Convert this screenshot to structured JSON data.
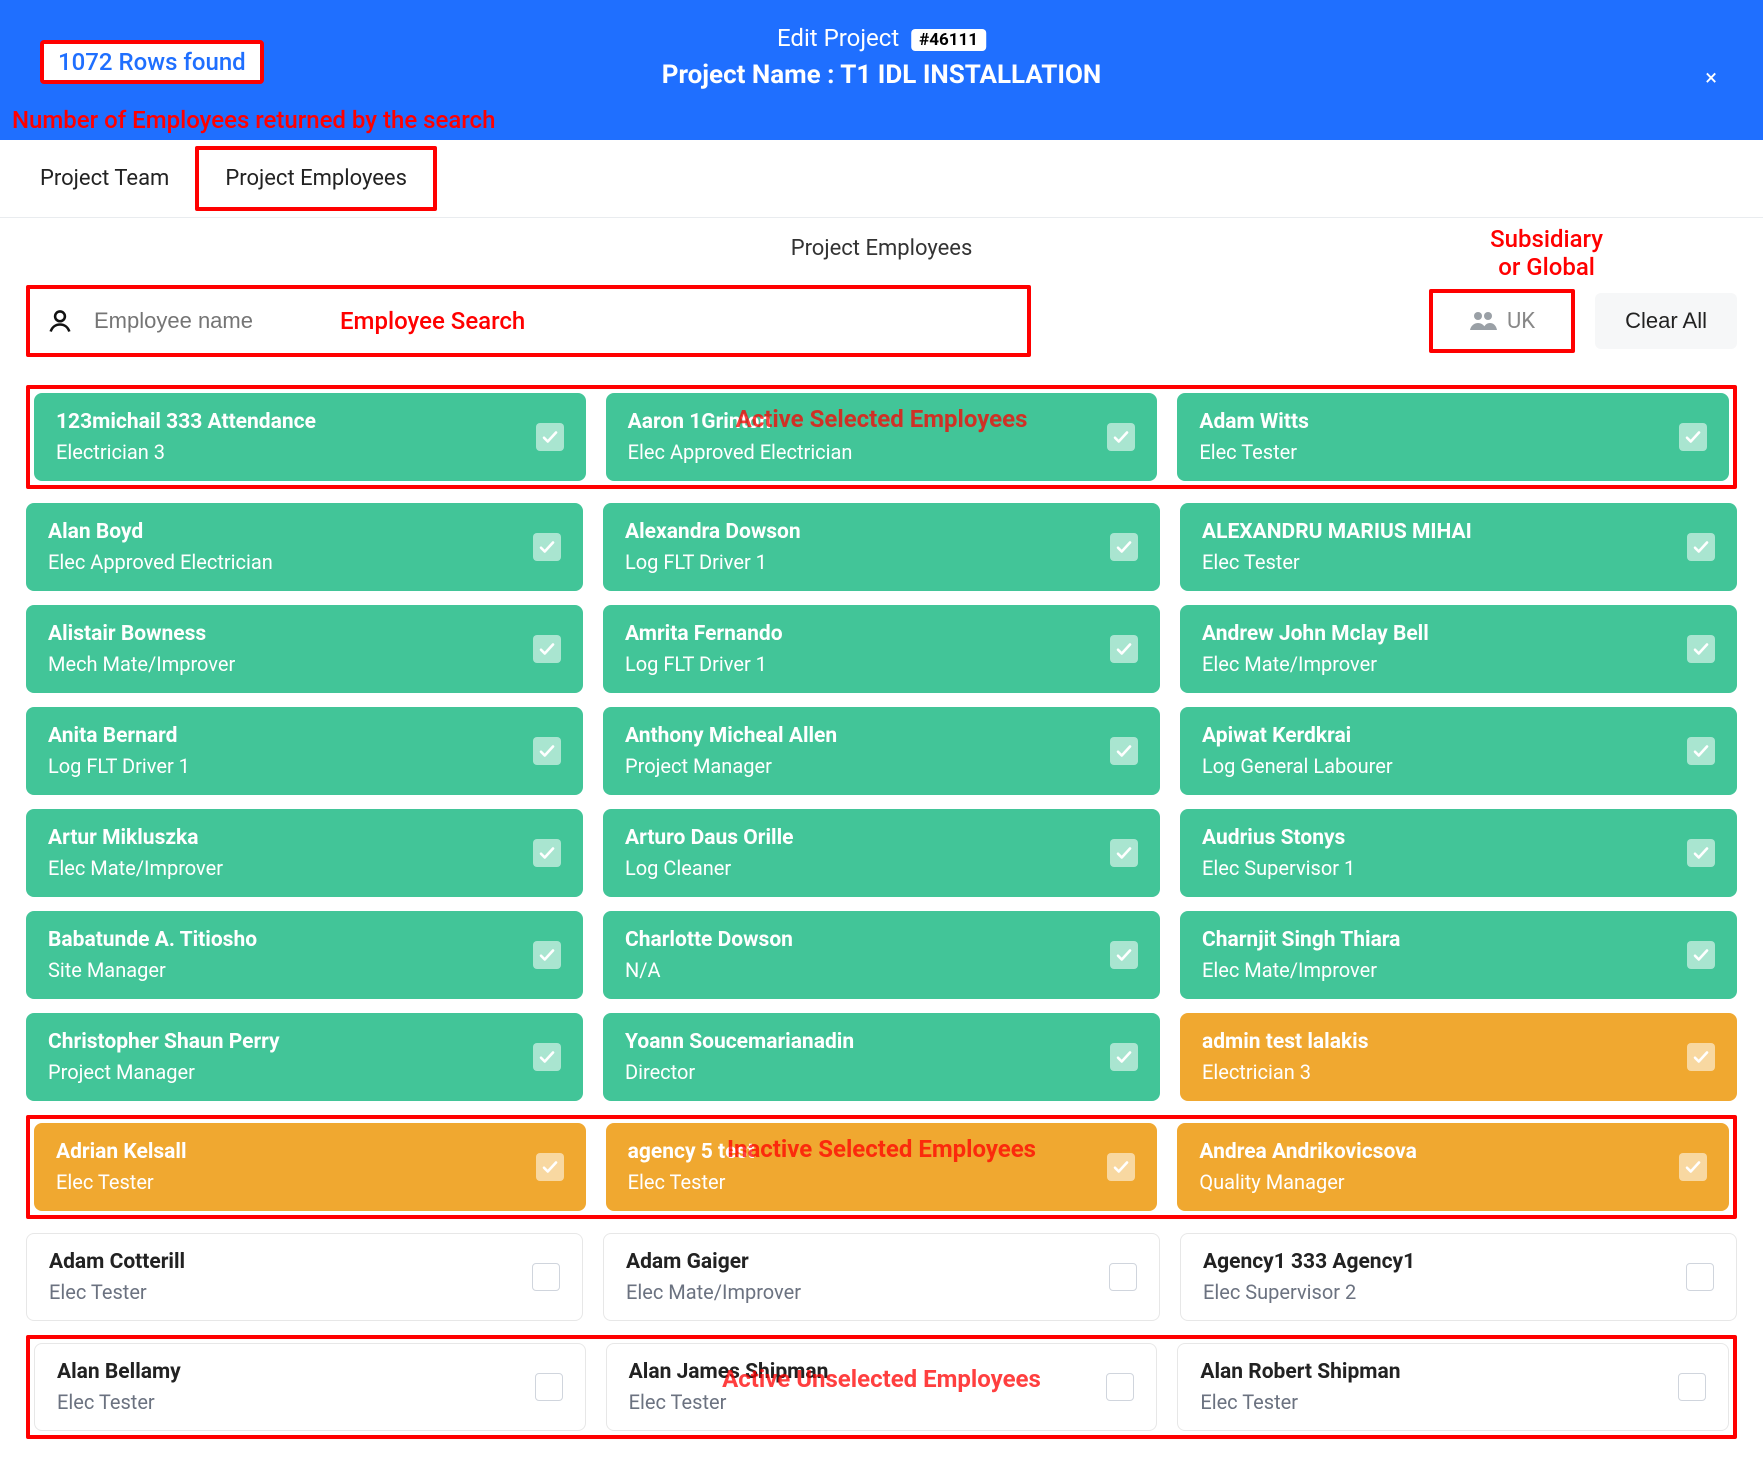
{
  "colors": {
    "header_bg": "#1f6fff",
    "annotation": "#ff0000",
    "green": "#42c598",
    "orange": "#f0a830",
    "white": "#ffffff"
  },
  "header": {
    "rows_found": "1072 Rows found",
    "title_prefix": "Edit Project",
    "project_chip": "#46111",
    "project_name_line": "Project Name : T1 IDL INSTALLATION",
    "close_glyph": "×"
  },
  "annotations": {
    "rows_returned": "Number of Employees returned by the search",
    "employee_search": "Employee Search",
    "subsidiary": "Subsidiary\nor Global",
    "active_selected": "Active Selected Employees",
    "inactive_selected": "Inactive Selected Employees",
    "active_unselected": "Active Unselected Employees"
  },
  "tabs": {
    "project_team": "Project Team",
    "project_employees": "Project Employees"
  },
  "section_title": "Project Employees",
  "search": {
    "placeholder": "Employee name"
  },
  "subsidiary_button": "UK",
  "clear_all": "Clear All",
  "employees": {
    "active_selected_first": [
      {
        "name": "123michail 333 Attendance",
        "role": "Electrician 3"
      },
      {
        "name": "Aaron 1Grinton",
        "role": "Elec Approved Electrician"
      },
      {
        "name": "Adam Witts",
        "role": "Elec Tester"
      }
    ],
    "green_rows": [
      [
        {
          "name": "Alan Boyd",
          "role": "Elec Approved Electrician"
        },
        {
          "name": "Alexandra Dowson",
          "role": "Log FLT Driver 1"
        },
        {
          "name": "ALEXANDRU MARIUS MIHAI",
          "role": "Elec Tester"
        }
      ],
      [
        {
          "name": "Alistair Bowness",
          "role": "Mech Mate/Improver"
        },
        {
          "name": "Amrita Fernando",
          "role": "Log FLT Driver 1"
        },
        {
          "name": "Andrew John Mclay Bell",
          "role": "Elec Mate/Improver"
        }
      ],
      [
        {
          "name": "Anita Bernard",
          "role": "Log FLT Driver 1"
        },
        {
          "name": "Anthony Micheal Allen",
          "role": "Project Manager"
        },
        {
          "name": "Apiwat Kerdkrai",
          "role": "Log General Labourer"
        }
      ],
      [
        {
          "name": "Artur Mikluszka",
          "role": "Elec Mate/Improver"
        },
        {
          "name": "Arturo Daus Orille",
          "role": "Log Cleaner"
        },
        {
          "name": "Audrius Stonys",
          "role": "Elec Supervisor 1"
        }
      ],
      [
        {
          "name": "Babatunde A. Titiosho",
          "role": "Site Manager"
        },
        {
          "name": "Charlotte Dowson",
          "role": "N/A"
        },
        {
          "name": "Charnjit Singh Thiara",
          "role": "Elec Mate/Improver"
        }
      ]
    ],
    "mixed_row": [
      {
        "name": "Christopher Shaun Perry",
        "role": "Project Manager",
        "variant": "green"
      },
      {
        "name": "Yoann Soucemarianadin",
        "role": "Director",
        "variant": "green"
      },
      {
        "name": "admin test lalakis",
        "role": "Electrician 3",
        "variant": "orange"
      }
    ],
    "inactive_selected": [
      {
        "name": "Adrian Kelsall",
        "role": "Elec Tester"
      },
      {
        "name": "agency 5 test",
        "role": "Elec Tester"
      },
      {
        "name": "Andrea Andrikovicsova",
        "role": "Quality Manager"
      }
    ],
    "unselected_row": [
      {
        "name": "Adam Cotterill",
        "role": "Elec Tester"
      },
      {
        "name": "Adam Gaiger",
        "role": "Elec Mate/Improver"
      },
      {
        "name": "Agency1 333 Agency1",
        "role": "Elec Supervisor 2"
      }
    ],
    "active_unselected": [
      {
        "name": "Alan Bellamy",
        "role": "Elec Tester"
      },
      {
        "name": "Alan James Shipman",
        "role": "Elec Tester"
      },
      {
        "name": "Alan Robert Shipman",
        "role": "Elec Tester"
      }
    ]
  }
}
